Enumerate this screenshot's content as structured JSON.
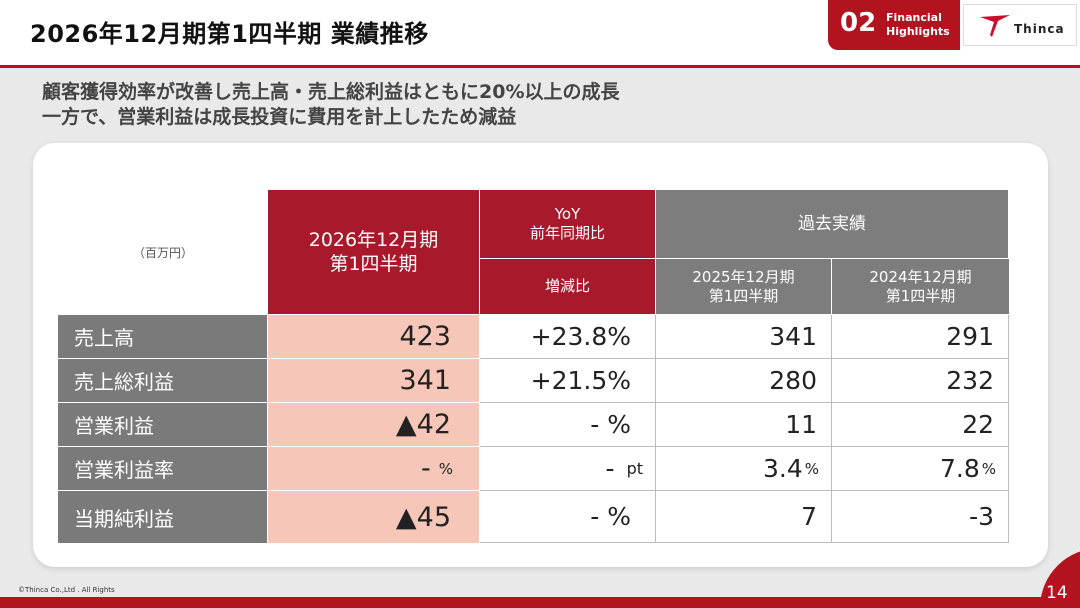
{
  "header": {
    "title": "2026年12月期第1四半期 業績推移",
    "section_number": "02",
    "section_label_line1": "Financial",
    "section_label_line2": "Highlights",
    "logo_text": "Thinca"
  },
  "lead": {
    "line1": "顧客獲得効率が改善し売上高・売上総利益はともに20%以上の成長",
    "line2": "一方で、営業利益は成長投資に費用を計上したため減益"
  },
  "table": {
    "unit": "（百万円）",
    "current_header_line1": "2026年12月期",
    "current_header_line2": "第1四半期",
    "yoy_header_line1": "YoY",
    "yoy_header_line2": "前年同期比",
    "yoy_subheader": "増減比",
    "past_header": "過去実績",
    "past1_header_line1": "2025年12月期",
    "past1_header_line2": "第1四半期",
    "past2_header_line1": "2024年12月期",
    "past2_header_line2": "第1四半期",
    "rows": [
      {
        "label": "売上高",
        "current": "423",
        "current_unit": "",
        "yoy": "+23.8%",
        "yoy_unit": "",
        "past1": "341",
        "past1_unit": "",
        "past2": "291",
        "past2_unit": ""
      },
      {
        "label": "売上総利益",
        "current": "341",
        "current_unit": "",
        "yoy": "+21.5%",
        "yoy_unit": "",
        "past1": "280",
        "past1_unit": "",
        "past2": "232",
        "past2_unit": ""
      },
      {
        "label": "営業利益",
        "current": "▲42",
        "current_unit": "",
        "yoy": "- %",
        "yoy_unit": "",
        "past1": "11",
        "past1_unit": "",
        "past2": "22",
        "past2_unit": ""
      },
      {
        "label": "営業利益率",
        "current": "-",
        "current_unit": "%",
        "yoy": "-",
        "yoy_unit": "pt",
        "past1": "3.4",
        "past1_unit": "%",
        "past2": "7.8",
        "past2_unit": "%"
      },
      {
        "label": "当期純利益",
        "current": "▲45",
        "current_unit": "",
        "yoy": "- %",
        "yoy_unit": "",
        "past1": "7",
        "past1_unit": "",
        "past2": "-3",
        "past2_unit": ""
      }
    ]
  },
  "footer": {
    "copyright": "©Thinca Co.,Ltd . All Rights",
    "page_number": "14"
  },
  "colors": {
    "brand_red": "#b3121f",
    "header_red": "#a8192b",
    "header_grey": "#7d7d7d",
    "current_fill": "#f6c7b8"
  }
}
